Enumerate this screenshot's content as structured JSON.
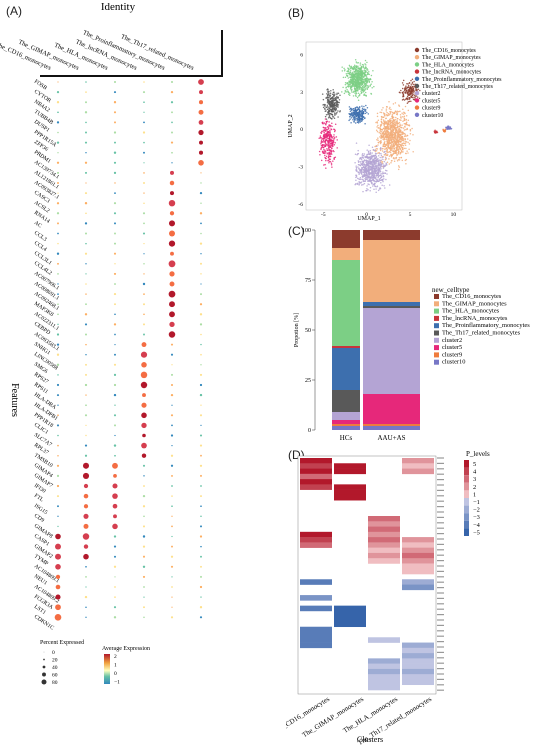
{
  "panels": {
    "a": "(A)",
    "b": "(B)",
    "c": "(C)",
    "d": "(D)"
  },
  "panel_a": {
    "title": "Identity",
    "ylabel": "Features",
    "columns": [
      "The_CD16_monocytes",
      "The_GIMAP_monocytes",
      "The_HLA_monocytes",
      "The_lncRNA_monocytes",
      "The_Proinflammatory_monocytes",
      "The_Th17_related_monocytes"
    ],
    "features": [
      "FOSB",
      "CYTOR",
      "NR4A2",
      "TUBB4B",
      "DUSP1",
      "PPP1R15A",
      "ZFP36",
      "PRDM1",
      "AC139734.1",
      "AL121861.1",
      "AC093827.1",
      "CASC3",
      "ACSL2",
      "RNA14",
      "AC",
      "CCL3",
      "CCL4",
      "CCL3L1",
      "CCL4L2",
      "AC007906.1",
      "AC008691.1",
      "AC092468.1",
      "MAP3K8",
      "AC022311.1",
      "CEBPD",
      "AC093583.1",
      "SNHG1",
      "LINC00588",
      "SMG6",
      "RPS27",
      "RPS11",
      "HLA-DRA",
      "HLA-DPB1",
      "PPP1R18",
      "CLIC1",
      "SLC7A7",
      "RPL37",
      "TMSB10",
      "GIMAP4",
      "GIMAP7",
      "IFI30",
      "FTL",
      "ISG15",
      "CD9",
      "GIMAP8",
      "CASP1",
      "GIMAP2",
      "TYMP",
      "AC104809.1",
      "NEU1",
      "AC104809.2",
      "FCGR3A",
      "LST1",
      "CDKN1C"
    ],
    "size_legend_title": "Percent Expressed",
    "size_legend": [
      "0",
      "20",
      "40",
      "60",
      "80"
    ],
    "color_legend_title": "Average Expression",
    "color_legend": [
      "2",
      "1",
      "0",
      "−1"
    ]
  },
  "panel_b": {
    "xlabel": "UMAP_1",
    "ylabel": "UMAP_2",
    "xticks": [
      "-5",
      "0",
      "5",
      "10"
    ],
    "yticks": [
      "6",
      "3",
      "0",
      "-3",
      "-6"
    ],
    "legend": [
      {
        "name": "The_CD16_monocytes",
        "color": "#8c3b2d"
      },
      {
        "name": "The_GIMAP_monocytes",
        "color": "#f2ae7b"
      },
      {
        "name": "The_HLA_monocytes",
        "color": "#7ccf85"
      },
      {
        "name": "The_lncRNA_monocytes",
        "color": "#c8343b"
      },
      {
        "name": "The_Proinflammatory_monocytes",
        "color": "#3d6fae"
      },
      {
        "name": "The_Th17_related_monocytes",
        "color": "#595959"
      },
      {
        "name": "cluster2",
        "color": "#b4a4d4"
      },
      {
        "name": "cluster5",
        "color": "#e6287a"
      },
      {
        "name": "cluster9",
        "color": "#ef7b3d"
      },
      {
        "name": "cluster10",
        "color": "#7777c6"
      }
    ]
  },
  "panel_c": {
    "ylabel": "Propotion [%]",
    "legend_title": "new_celltype"
  },
  "panel_d": {
    "xlabel": "Clusters",
    "legend_title": "P_levels",
    "legend_ticks": [
      "5",
      "4",
      "3",
      "2",
      "1",
      "−1",
      "−2",
      "−3",
      "−4",
      "−5"
    ],
    "columns": [
      "The_CD16_monocytes",
      "The_GIMAP_monocytes",
      "The_HLA_monocytes",
      "The_Th17_related_monocytes"
    ]
  },
  "chart_data": [
    {
      "type": "scatter",
      "panel": "B",
      "xlabel": "UMAP_1",
      "ylabel": "UMAP_2",
      "xlim": [
        -7,
        11
      ],
      "ylim": [
        -6.5,
        7
      ],
      "series": [
        {
          "name": "The_CD16_monocytes",
          "centroid": [
            5,
            3
          ]
        },
        {
          "name": "The_GIMAP_monocytes",
          "centroid": [
            3,
            -0.5
          ]
        },
        {
          "name": "The_HLA_monocytes",
          "centroid": [
            -1,
            4
          ]
        },
        {
          "name": "The_lncRNA_monocytes",
          "centroid": [
            8,
            -0.2
          ]
        },
        {
          "name": "The_Proinflammatory_monocytes",
          "centroid": [
            -1,
            1.2
          ]
        },
        {
          "name": "The_Th17_related_monocytes",
          "centroid": [
            -4,
            2
          ]
        },
        {
          "name": "cluster2",
          "centroid": [
            0.5,
            -3.2
          ]
        },
        {
          "name": "cluster5",
          "centroid": [
            -4.5,
            -1
          ]
        },
        {
          "name": "cluster9",
          "centroid": [
            9,
            -0.1
          ]
        },
        {
          "name": "cluster10",
          "centroid": [
            9.5,
            0.1
          ]
        }
      ]
    },
    {
      "type": "bar",
      "panel": "C",
      "stacked": true,
      "categories": [
        "HCs",
        "AAU+AS"
      ],
      "ylabel": "Propotion [%]",
      "ylim": [
        0,
        100
      ],
      "yticks": [
        0,
        25,
        50,
        75,
        100
      ],
      "series": [
        {
          "name": "The_CD16_monocytes",
          "color": "#8c3b2d",
          "values": [
            9,
            5
          ]
        },
        {
          "name": "The_GIMAP_monocytes",
          "color": "#f2ae7b",
          "values": [
            6,
            31
          ]
        },
        {
          "name": "The_HLA_monocytes",
          "color": "#7ccf85",
          "values": [
            43,
            0
          ]
        },
        {
          "name": "The_lncRNA_monocytes",
          "color": "#c8343b",
          "values": [
            1,
            0
          ]
        },
        {
          "name": "The_Proinflammatory_monocytes",
          "color": "#3d6fae",
          "values": [
            21,
            2
          ]
        },
        {
          "name": "The_Th17_related_monocytes",
          "color": "#595959",
          "values": [
            11,
            1
          ]
        },
        {
          "name": "cluster2",
          "color": "#b4a4d4",
          "values": [
            4,
            43
          ]
        },
        {
          "name": "cluster5",
          "color": "#e6287a",
          "values": [
            2,
            15
          ]
        },
        {
          "name": "cluster9",
          "color": "#ef7b3d",
          "values": [
            1,
            1
          ]
        },
        {
          "name": "cluster10",
          "color": "#7777c6",
          "values": [
            2,
            2
          ]
        }
      ]
    },
    {
      "type": "heatmap",
      "panel": "D",
      "x": [
        "The_CD16_monocytes",
        "The_GIMAP_monocytes",
        "The_HLA_monocytes",
        "The_Th17_related_monocytes"
      ],
      "zlim": [
        -5,
        5
      ],
      "blocks": [
        {
          "col": 0,
          "values": [
            5,
            4,
            5,
            3,
            5,
            4,
            0,
            0,
            0,
            0,
            0,
            0,
            0,
            0,
            5,
            4,
            3,
            0,
            0,
            0,
            0,
            0,
            0,
            -4,
            0,
            0,
            -3,
            0,
            -4,
            0,
            0,
            0,
            -4,
            -4,
            -4,
            -4,
            0,
            0,
            0,
            0,
            0,
            0,
            0,
            0
          ]
        },
        {
          "col": 1,
          "values": [
            0,
            5,
            5,
            0,
            0,
            5,
            5,
            5,
            0,
            0,
            0,
            0,
            0,
            0,
            0,
            0,
            0,
            0,
            0,
            0,
            0,
            0,
            0,
            0,
            0,
            0,
            0,
            0,
            -5,
            -5,
            -5,
            -5,
            0,
            0,
            0,
            0,
            0,
            0,
            0,
            0,
            0,
            0,
            0,
            0
          ]
        },
        {
          "col": 2,
          "values": [
            0,
            0,
            0,
            0,
            0,
            0,
            0,
            0,
            0,
            0,
            0,
            3,
            2,
            3,
            2,
            3,
            2,
            1,
            2,
            1,
            0,
            0,
            0,
            0,
            0,
            0,
            0,
            0,
            0,
            0,
            0,
            0,
            0,
            0,
            -1,
            0,
            0,
            0,
            -2,
            -1,
            -2,
            -1,
            -1,
            -1
          ]
        },
        {
          "col": 3,
          "values": [
            2,
            1,
            2,
            0,
            0,
            0,
            0,
            0,
            0,
            0,
            0,
            0,
            0,
            0,
            0,
            2,
            1,
            2,
            3,
            2,
            1,
            1,
            0,
            -2,
            -3,
            0,
            0,
            0,
            0,
            0,
            0,
            0,
            0,
            0,
            0,
            -2,
            -1,
            -2,
            -1,
            -1,
            -2,
            -1,
            -1,
            0
          ]
        }
      ]
    }
  ]
}
